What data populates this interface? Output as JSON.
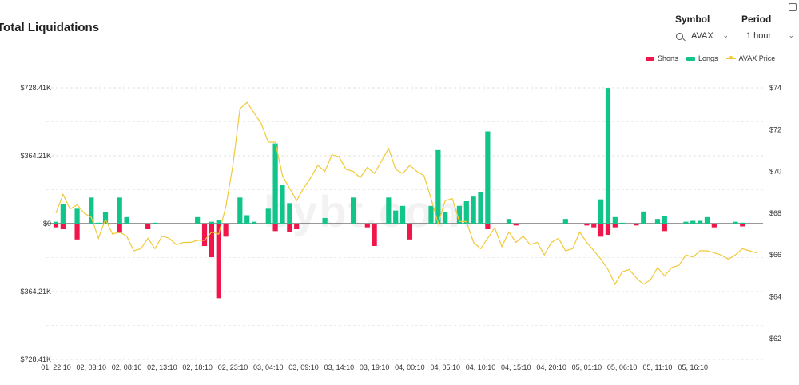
{
  "title": "Total Liquidations",
  "controls": {
    "symbol_label": "Symbol",
    "symbol_value": "AVAX",
    "period_label": "Period",
    "period_value": "1 hour"
  },
  "watermark": "bybt.com",
  "colors": {
    "shorts": "#f0154a",
    "longs": "#10c48a",
    "price": "#f0c93a"
  },
  "chart_data": {
    "type": "bar",
    "legend": [
      {
        "name": "Shorts",
        "kind": "bar"
      },
      {
        "name": "Longs",
        "kind": "bar"
      },
      {
        "name": "AVAX Price",
        "kind": "line"
      }
    ],
    "y_left_ticks": [
      "$728.41K",
      "$364.21K",
      "$0",
      "$364.21K",
      "$728.41K"
    ],
    "y_right_ticks": [
      "$74",
      "$72",
      "$70",
      "$68",
      "$66",
      "$64",
      "$62"
    ],
    "ylim_left": [
      -728.41,
      728.41
    ],
    "ylim_right": [
      61,
      74
    ],
    "x_tick_labels": [
      "01, 22:10",
      "02, 03:10",
      "02, 08:10",
      "02, 13:10",
      "02, 18:10",
      "02, 23:10",
      "03, 04:10",
      "03, 09:10",
      "03, 14:10",
      "03, 19:10",
      "04, 00:10",
      "04, 05:10",
      "04, 10:10",
      "04, 15:10",
      "04, 20:10",
      "05, 01:10",
      "05, 06:10",
      "05, 11:10",
      "05, 16:10"
    ],
    "x_tick_index": [
      0,
      5,
      10,
      15,
      20,
      25,
      30,
      35,
      40,
      45,
      50,
      55,
      60,
      65,
      70,
      75,
      80,
      85,
      90
    ],
    "longs": [
      10,
      105,
      0,
      80,
      0,
      140,
      5,
      60,
      0,
      140,
      35,
      0,
      0,
      0,
      5,
      0,
      0,
      0,
      0,
      0,
      35,
      0,
      10,
      20,
      0,
      0,
      140,
      45,
      10,
      0,
      80,
      430,
      210,
      110,
      0,
      0,
      0,
      0,
      30,
      0,
      0,
      0,
      140,
      0,
      0,
      0,
      0,
      140,
      70,
      95,
      0,
      0,
      0,
      95,
      395,
      60,
      0,
      95,
      120,
      145,
      170,
      495,
      0,
      0,
      25,
      0,
      0,
      0,
      0,
      0,
      0,
      0,
      25,
      0,
      0,
      0,
      0,
      130,
      728,
      35,
      5,
      0,
      0,
      65,
      0,
      25,
      40,
      0,
      0,
      10,
      15,
      15,
      35,
      0,
      0,
      0,
      10,
      5,
      0,
      0
    ],
    "shorts": [
      -20,
      -30,
      0,
      -85,
      0,
      0,
      0,
      0,
      0,
      -50,
      0,
      0,
      0,
      -30,
      0,
      0,
      0,
      0,
      0,
      0,
      0,
      -120,
      -180,
      -400,
      -70,
      0,
      0,
      0,
      0,
      0,
      0,
      -40,
      0,
      -45,
      -30,
      0,
      0,
      0,
      0,
      0,
      0,
      0,
      0,
      0,
      -20,
      -120,
      0,
      0,
      0,
      0,
      -85,
      0,
      0,
      0,
      0,
      0,
      0,
      0,
      0,
      0,
      0,
      -30,
      0,
      0,
      0,
      -10,
      0,
      0,
      0,
      0,
      0,
      0,
      0,
      0,
      0,
      -10,
      -20,
      -70,
      -60,
      -20,
      0,
      0,
      -10,
      0,
      0,
      0,
      -40,
      0,
      0,
      0,
      0,
      0,
      0,
      -20,
      0,
      0,
      0,
      -15,
      0,
      0
    ],
    "price": [
      68.0,
      68.9,
      68.2,
      68.4,
      68.0,
      67.8,
      66.8,
      67.7,
      67.0,
      67.1,
      66.9,
      66.2,
      66.3,
      66.8,
      66.3,
      66.9,
      66.8,
      66.5,
      66.6,
      66.6,
      66.7,
      66.7,
      67.1,
      67.0,
      68.3,
      70.3,
      73.0,
      73.3,
      72.8,
      72.3,
      71.4,
      71.4,
      69.8,
      69.2,
      68.6,
      69.2,
      69.7,
      70.3,
      70.0,
      70.8,
      70.7,
      70.1,
      70.0,
      69.7,
      70.2,
      69.9,
      70.5,
      71.1,
      70.1,
      69.9,
      70.3,
      70.0,
      69.8,
      68.7,
      67.5,
      68.6,
      68.7,
      67.6,
      67.6,
      66.6,
      66.3,
      66.8,
      67.3,
      66.4,
      67.1,
      66.6,
      66.9,
      66.5,
      66.6,
      66.0,
      66.6,
      66.8,
      66.2,
      66.3,
      67.1,
      66.6,
      66.2,
      65.8,
      65.3,
      64.6,
      65.2,
      65.3,
      64.9,
      64.6,
      64.8,
      65.4,
      65.0,
      65.4,
      65.5,
      66.0,
      65.9,
      66.2,
      66.2,
      66.1,
      66.0,
      65.8,
      66.0,
      66.3,
      66.2,
      66.1
    ]
  }
}
